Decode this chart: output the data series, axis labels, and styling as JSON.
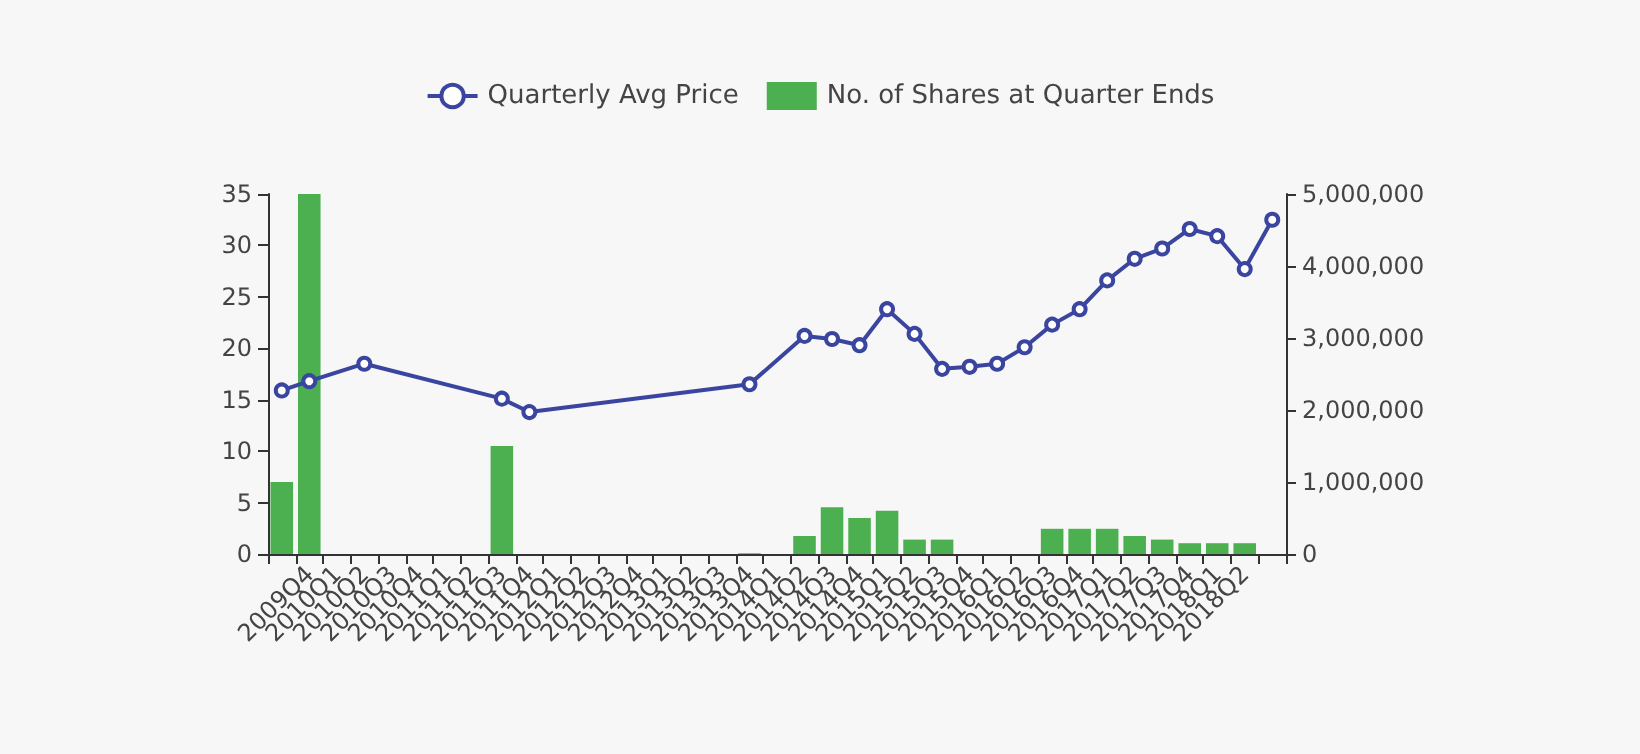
{
  "chart_data": {
    "type": "bar",
    "categories": [
      null,
      "2009Q4",
      "2010Q1",
      "2010Q2",
      "2010Q3",
      "2010Q4",
      "2011Q1",
      "2011Q2",
      "2011Q3",
      "2011Q4",
      "2012Q1",
      "2012Q2",
      "2012Q3",
      "2012Q4",
      "2013Q1",
      "2013Q2",
      "2013Q3",
      "2013Q4",
      "2014Q1",
      "2014Q2",
      "2014Q3",
      "2014Q4",
      "2015Q1",
      "2015Q2",
      "2015Q3",
      "2015Q4",
      "2016Q1",
      "2016Q2",
      "2016Q3",
      "2016Q4",
      "2017Q1",
      "2017Q2",
      "2017Q3",
      "2017Q4",
      "2018Q1",
      "2018Q2",
      null
    ],
    "series": [
      {
        "name": "Quarterly Avg Price",
        "type": "line",
        "color": "#3a45a0",
        "marker": "circle",
        "values": [
          15.9,
          16.8,
          null,
          18.5,
          null,
          null,
          null,
          null,
          15.1,
          13.8,
          null,
          null,
          null,
          null,
          null,
          null,
          null,
          16.5,
          null,
          21.2,
          20.9,
          20.3,
          23.8,
          21.4,
          18.0,
          18.2,
          18.5,
          20.1,
          22.3,
          23.8,
          26.6,
          28.7,
          29.7,
          31.6,
          30.9,
          27.7,
          32.5
        ]
      },
      {
        "name": "No. of Shares at Quarter Ends",
        "axis": "y2",
        "color": "#4caf50",
        "values": [
          1000000,
          5000000,
          null,
          null,
          null,
          null,
          null,
          null,
          1500000,
          null,
          null,
          null,
          null,
          null,
          null,
          null,
          null,
          10000,
          null,
          250000,
          650000,
          500000,
          600000,
          200000,
          200000,
          null,
          null,
          null,
          350000,
          350000,
          350000,
          250000,
          200000,
          150000,
          150000,
          150000,
          null
        ]
      }
    ],
    "ylim": [
      0,
      35
    ],
    "yticks": [
      0,
      5,
      10,
      15,
      20,
      25,
      30,
      35
    ],
    "y2lim": [
      0,
      5000000
    ],
    "y2ticks": [
      0,
      {
        "value": 1000000,
        "label": "1,000,000"
      },
      {
        "value": 2000000,
        "label": "2,000,000"
      },
      {
        "value": 3000000,
        "label": "3,000,000"
      },
      {
        "value": 4000000,
        "label": "4,000,000"
      },
      {
        "value": 5000000,
        "label": "5,000,000"
      }
    ],
    "legend": "top",
    "grid": false
  }
}
